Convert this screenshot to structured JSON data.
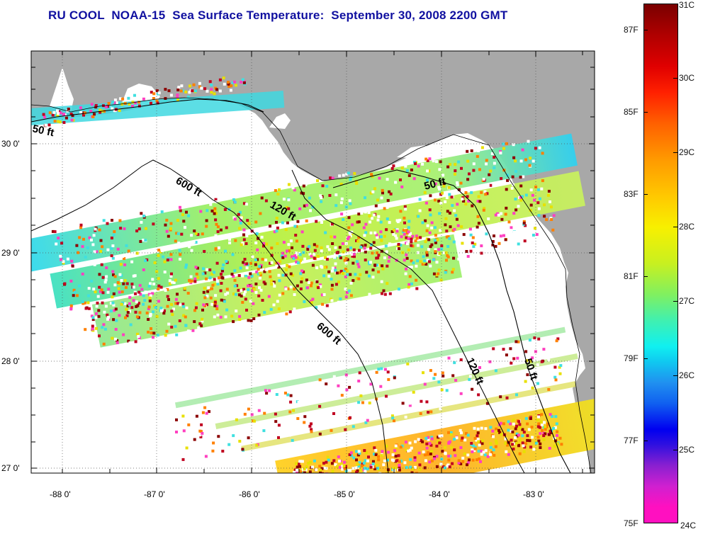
{
  "title": "RU COOL  NOAA-15  Sea Surface Temperature:  September 30, 2008 2200 GMT",
  "y_axis_labels": [
    "30 0'",
    "29 0'",
    "28 0'",
    "27 0'"
  ],
  "x_axis_labels": [
    "-88 0'",
    "-87 0'",
    "-86 0'",
    "-85 0'",
    "-84 0'",
    "-83 0'"
  ],
  "contour_labels": [
    "50 ft",
    "600 ft",
    "120 ft",
    "50 ft",
    "600 ft",
    "120 ft",
    "50 ft"
  ],
  "colorbar": {
    "celsius_labels": [
      "31C",
      "30C",
      "29C",
      "28C",
      "27C",
      "26C",
      "25C",
      "24C"
    ],
    "fahrenheit_labels": [
      "87F",
      "85F",
      "83F",
      "81F",
      "79F",
      "77F",
      "75F"
    ],
    "range_celsius": [
      24,
      31
    ]
  },
  "colors": {
    "title": "#1010a0",
    "land": "#a8a8a8",
    "water_no_data": "#ffffff"
  }
}
